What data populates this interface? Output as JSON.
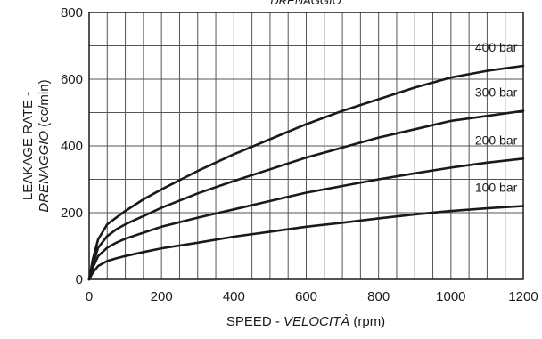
{
  "chart_data": {
    "type": "line",
    "title": "DRENAGGIO",
    "xlabel": {
      "main": "SPEED - ",
      "italic": "VELOCITÀ",
      "unit": " (rpm)"
    },
    "ylabel": {
      "main": "LEAKAGE RATE -",
      "italic": "DRENAGGIO",
      "unit": " (cc/min)"
    },
    "xlim": [
      0,
      1200
    ],
    "ylim": [
      0,
      800
    ],
    "x_ticks": [
      0,
      200,
      400,
      600,
      800,
      1000,
      1200
    ],
    "y_ticks": [
      0,
      200,
      400,
      600,
      800
    ],
    "grid": true,
    "series": [
      {
        "name": "400 bar",
        "x": [
          0,
          10,
          25,
          50,
          75,
          100,
          150,
          200,
          300,
          400,
          500,
          600,
          700,
          800,
          900,
          1000,
          1100,
          1200
        ],
        "y": [
          0,
          60,
          120,
          165,
          185,
          205,
          240,
          270,
          325,
          375,
          420,
          465,
          505,
          540,
          575,
          605,
          625,
          640
        ]
      },
      {
        "name": "300 bar",
        "x": [
          0,
          10,
          25,
          50,
          75,
          100,
          150,
          200,
          300,
          400,
          500,
          600,
          700,
          800,
          900,
          1000,
          1100,
          1200
        ],
        "y": [
          0,
          45,
          95,
          130,
          150,
          165,
          190,
          215,
          258,
          295,
          330,
          365,
          395,
          425,
          450,
          475,
          490,
          505
        ]
      },
      {
        "name": "200 bar",
        "x": [
          0,
          10,
          25,
          50,
          75,
          100,
          150,
          200,
          300,
          400,
          500,
          600,
          700,
          800,
          900,
          1000,
          1100,
          1200
        ],
        "y": [
          0,
          35,
          70,
          95,
          110,
          122,
          140,
          158,
          185,
          210,
          235,
          260,
          280,
          300,
          318,
          335,
          350,
          362
        ]
      },
      {
        "name": "100 bar",
        "x": [
          0,
          10,
          25,
          50,
          75,
          100,
          150,
          200,
          300,
          400,
          500,
          600,
          700,
          800,
          900,
          1000,
          1100,
          1200
        ],
        "y": [
          0,
          20,
          40,
          55,
          63,
          70,
          82,
          93,
          110,
          128,
          143,
          158,
          170,
          183,
          195,
          205,
          213,
          220
        ]
      }
    ]
  }
}
